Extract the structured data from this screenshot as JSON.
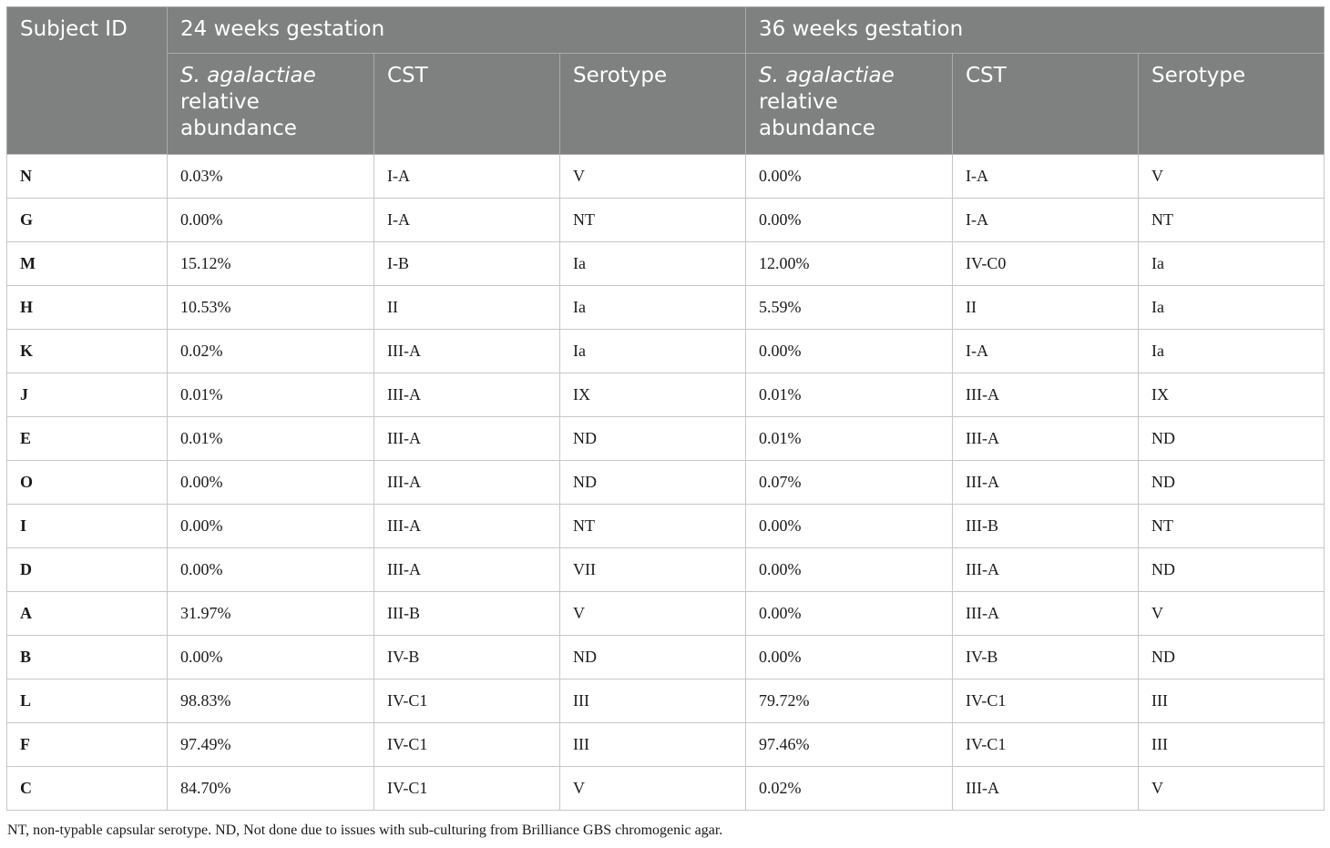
{
  "header": {
    "subject_id": "Subject ID",
    "group1": "24 weeks gestation",
    "group2": "36 weeks gestation",
    "abundance_species": "S. agalactiae",
    "abundance_rest": "relative abundance",
    "cst": "CST",
    "serotype": "Serotype"
  },
  "rows": [
    [
      "N",
      "0.03%",
      "I-A",
      "V",
      "0.00%",
      "I-A",
      "V"
    ],
    [
      "G",
      "0.00%",
      "I-A",
      "NT",
      "0.00%",
      "I-A",
      "NT"
    ],
    [
      "M",
      "15.12%",
      "I-B",
      "Ia",
      "12.00%",
      "IV-C0",
      "Ia"
    ],
    [
      "H",
      "10.53%",
      "II",
      "Ia",
      "5.59%",
      "II",
      "Ia"
    ],
    [
      "K",
      "0.02%",
      "III-A",
      "Ia",
      "0.00%",
      "I-A",
      "Ia"
    ],
    [
      "J",
      "0.01%",
      "III-A",
      "IX",
      "0.01%",
      "III-A",
      "IX"
    ],
    [
      "E",
      "0.01%",
      "III-A",
      "ND",
      "0.01%",
      "III-A",
      "ND"
    ],
    [
      "O",
      "0.00%",
      "III-A",
      "ND",
      "0.07%",
      "III-A",
      "ND"
    ],
    [
      "I",
      "0.00%",
      "III-A",
      "NT",
      "0.00%",
      "III-B",
      "NT"
    ],
    [
      "D",
      "0.00%",
      "III-A",
      "VII",
      "0.00%",
      "III-A",
      "ND"
    ],
    [
      "A",
      "31.97%",
      "III-B",
      "V",
      "0.00%",
      "III-A",
      "V"
    ],
    [
      "B",
      "0.00%",
      "IV-B",
      "ND",
      "0.00%",
      "IV-B",
      "ND"
    ],
    [
      "L",
      "98.83%",
      "IV-C1",
      "III",
      "79.72%",
      "IV-C1",
      "III"
    ],
    [
      "F",
      "97.49%",
      "IV-C1",
      "III",
      "97.46%",
      "IV-C1",
      "III"
    ],
    [
      "C",
      "84.70%",
      "IV-C1",
      "V",
      "0.02%",
      "III-A",
      "V"
    ]
  ],
  "footnote": "NT, non-typable capsular serotype. ND, Not done due to issues with sub-culturing from Brilliance GBS chromogenic agar."
}
